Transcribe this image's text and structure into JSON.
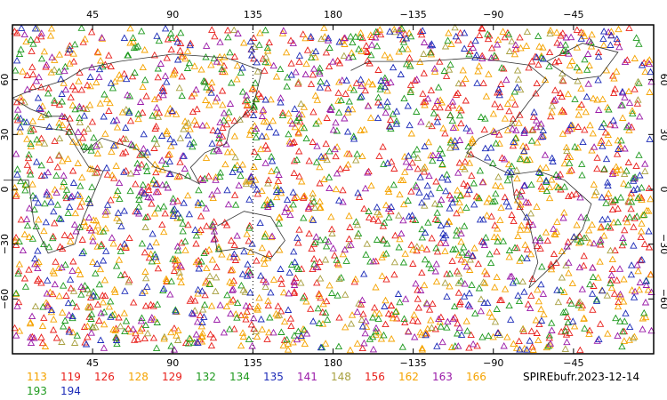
{
  "map": {
    "lon_labels_top": [
      "45",
      "90",
      "135",
      "180",
      "−135",
      "−90",
      "−45"
    ],
    "lon_labels_bottom": [
      "45",
      "90",
      "135",
      "180",
      "−135",
      "−90",
      "−45"
    ],
    "lat_labels_left": [
      "60",
      "30",
      "0",
      "−30",
      "−60"
    ],
    "lat_labels_right": [
      "60",
      "30",
      "0",
      "−30",
      "−60"
    ],
    "lon_values": [
      45,
      90,
      135,
      180,
      225,
      270,
      315
    ],
    "lat_values": [
      60,
      30,
      0,
      -30,
      -60
    ],
    "lon_range": [
      0,
      360
    ],
    "lat_range": [
      -90,
      90
    ],
    "marker": "triangle-outline",
    "grid": "dotted at 135 longitude and labelled ticks"
  },
  "legend": {
    "items": [
      {
        "label": "113",
        "color": "#f5a300"
      },
      {
        "label": "119",
        "color": "#e8201c"
      },
      {
        "label": "126",
        "color": "#e8201c"
      },
      {
        "label": "128",
        "color": "#f5a300"
      },
      {
        "label": "129",
        "color": "#e8201c"
      },
      {
        "label": "132",
        "color": "#1f9a1f"
      },
      {
        "label": "134",
        "color": "#1f9a1f"
      },
      {
        "label": "135",
        "color": "#1c2bb8"
      },
      {
        "label": "141",
        "color": "#9a1aa8"
      },
      {
        "label": "148",
        "color": "#a8a040"
      },
      {
        "label": "156",
        "color": "#e8201c"
      },
      {
        "label": "162",
        "color": "#f5a300"
      },
      {
        "label": "163",
        "color": "#9a1aa8"
      },
      {
        "label": "166",
        "color": "#f5a300"
      },
      {
        "label": "193",
        "color": "#1f9a1f"
      },
      {
        "label": "194",
        "color": "#1c2bb8"
      }
    ]
  },
  "footer": {
    "title": "SPIREbufr.2023-12-14"
  }
}
